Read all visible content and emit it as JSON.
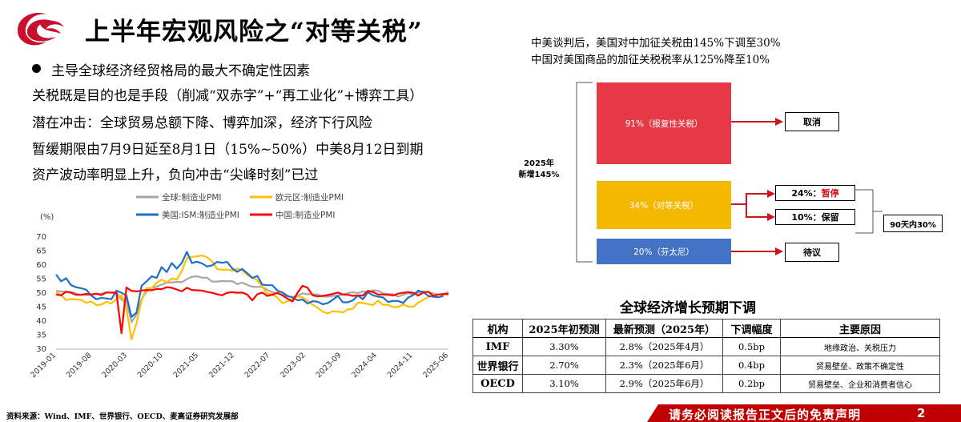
{
  "header": {
    "title": "上半年宏观风险之“对等关税”"
  },
  "left": {
    "bullet": "主导全球经济经贸格局的最大不确定性因素",
    "lines": [
      "关税既是目的也是手段（削减“双赤字”+“再工业化”+博弈工具）",
      "潜在冲击：全球贸易总额下降、博弈加深，经济下行风险",
      "暂缓期限由7月9日延至8月1日（15%~50%）中美8月12日到期",
      "资产波动率明显上升，负向冲击“尖峰时刻”已过"
    ]
  },
  "chart_data": {
    "type": "line",
    "ylabel": "(%)",
    "ylim": [
      30,
      70
    ],
    "yticks": [
      "70",
      "65",
      "60",
      "55",
      "50",
      "45",
      "40",
      "35",
      "30"
    ],
    "xticks": [
      "2019-01",
      "2019-08",
      "2020-03",
      "2020-10",
      "2021-05",
      "2021-12",
      "2022-07",
      "2023-02",
      "2023-09",
      "2024-04",
      "2024-11",
      "2025-06"
    ],
    "legend": [
      "全球:制造业PMI",
      "欧元区:制造业PMI",
      "美国:ISM:制造业PMI",
      "中国:制造业PMI"
    ],
    "colors": [
      "#a6a6a6",
      "#ffc000",
      "#1f6fc6",
      "#ff0000"
    ],
    "series": [
      {
        "name": "全球:制造业PMI",
        "values": [
          50.8,
          50.6,
          50.5,
          50.4,
          49.8,
          49.4,
          49.3,
          49.5,
          49.7,
          49.8,
          50.3,
          50.1,
          50.4,
          47.6,
          47.3,
          39.6,
          42.4,
          47.8,
          50.6,
          51.8,
          52.3,
          53.0,
          53.7,
          53.8,
          54.0,
          53.9,
          55.0,
          55.8,
          56.0,
          55.5,
          55.5,
          54.1,
          54.1,
          54.3,
          54.2,
          54.3,
          53.2,
          53.7,
          52.9,
          52.3,
          52.2,
          52.2,
          51.1,
          50.3,
          49.8,
          49.4,
          48.8,
          48.6,
          49.1,
          49.9,
          49.6,
          49.6,
          49.5,
          48.8,
          48.7,
          49.0,
          49.1,
          49.5,
          50.0,
          50.3,
          50.0,
          50.6,
          50.3,
          51.0,
          50.8,
          49.9,
          49.7,
          49.6,
          48.7,
          49.4,
          50.0,
          49.6,
          50.1,
          50.6,
          50.3,
          49.8,
          49.5,
          49.6,
          50.4
        ]
      },
      {
        "name": "欧元区:制造业PMI",
        "values": [
          50.5,
          49.3,
          47.5,
          47.9,
          47.7,
          47.6,
          46.5,
          47.0,
          45.7,
          45.9,
          46.9,
          46.3,
          47.9,
          49.2,
          44.5,
          33.4,
          39.4,
          47.4,
          51.8,
          51.7,
          53.7,
          54.8,
          53.8,
          55.2,
          54.8,
          57.9,
          62.5,
          62.9,
          63.1,
          63.4,
          62.8,
          61.4,
          58.6,
          58.3,
          58.4,
          58.0,
          58.7,
          58.2,
          56.5,
          55.5,
          54.6,
          52.1,
          49.8,
          49.6,
          48.4,
          46.4,
          47.1,
          47.8,
          48.8,
          48.5,
          47.3,
          45.8,
          44.8,
          43.4,
          42.7,
          43.5,
          43.4,
          43.1,
          44.2,
          44.4,
          46.6,
          46.5,
          46.1,
          45.7,
          47.3,
          45.8,
          45.8,
          45.0,
          45.0,
          46.0,
          45.2,
          45.1,
          46.6,
          47.6,
          48.6,
          49.0,
          49.4,
          49.5,
          49.5
        ]
      },
      {
        "name": "美国:ISM:制造业PMI",
        "values": [
          56.6,
          54.2,
          55.3,
          52.8,
          52.1,
          51.7,
          51.2,
          49.1,
          47.8,
          48.3,
          48.1,
          47.8,
          50.9,
          50.1,
          49.1,
          41.5,
          43.1,
          52.6,
          54.2,
          56.0,
          55.4,
          59.3,
          57.5,
          60.7,
          58.7,
          60.8,
          64.7,
          60.7,
          61.2,
          60.6,
          59.5,
          59.9,
          61.1,
          60.8,
          61.1,
          58.8,
          57.6,
          58.6,
          57.1,
          55.4,
          56.1,
          53.0,
          52.8,
          52.8,
          50.9,
          50.2,
          49.0,
          48.4,
          47.4,
          47.7,
          46.3,
          47.1,
          46.9,
          46.0,
          46.4,
          47.6,
          49.0,
          46.7,
          46.7,
          47.4,
          49.1,
          47.8,
          50.3,
          49.2,
          48.7,
          48.5,
          46.8,
          47.2,
          47.2,
          46.5,
          48.4,
          49.3,
          50.9,
          50.3,
          49.0,
          48.7,
          48.5,
          49.0
        ]
      },
      {
        "name": "中国:制造业PMI",
        "values": [
          49.5,
          49.2,
          50.5,
          50.1,
          49.4,
          49.4,
          49.7,
          49.5,
          49.8,
          49.3,
          50.2,
          50.2,
          50.0,
          35.7,
          52.0,
          50.8,
          50.6,
          50.9,
          51.1,
          51.0,
          51.5,
          51.4,
          52.1,
          51.9,
          51.3,
          50.6,
          51.9,
          51.1,
          51.0,
          50.9,
          50.4,
          50.1,
          49.6,
          49.2,
          50.1,
          50.3,
          50.1,
          50.2,
          49.5,
          47.4,
          49.6,
          50.2,
          49.0,
          49.4,
          50.1,
          49.2,
          48.0,
          47.0,
          50.1,
          52.6,
          51.9,
          49.2,
          48.8,
          49.0,
          49.3,
          49.7,
          50.2,
          49.5,
          49.4,
          49.0,
          49.2,
          49.1,
          50.8,
          50.4,
          49.5,
          49.5,
          49.4,
          49.1,
          49.8,
          50.1,
          50.3,
          50.1,
          49.1,
          50.2,
          50.5,
          49.0,
          49.5,
          49.7,
          49.7
        ]
      }
    ]
  },
  "notes": {
    "line1": "中美谈判后，美国对中加征关税由145%下调至30%",
    "line2": "中国对美国商品的加征关税税率从125%降至10%"
  },
  "diagram": {
    "total_label_1": "2025年",
    "total_label_2": "新增145%",
    "red_box": "91%（报复性关税）",
    "yellow_box": "34%（对等关税）",
    "blue_box": "20%（芬太尼）",
    "cancel": "取消",
    "suspend_pct": "24%：",
    "suspend": "暂停",
    "keep": "10%：保留",
    "pending": "待议",
    "window": "90天内30%",
    "colors": {
      "red": "#e63946",
      "yellow": "#f5b800",
      "blue": "#4472c4",
      "arrow": "#d0141b"
    }
  },
  "forecast": {
    "title": "全球经济增长预期下调",
    "headers": [
      "机构",
      "2025年初预测",
      "最新预测（2025年）",
      "下调幅度",
      "主要原因"
    ],
    "rows": [
      [
        "IMF",
        "3.30%",
        "2.8%（2025年4月）",
        "0.5bp",
        "地缘政治、关税压力"
      ],
      [
        "世界银行",
        "2.70%",
        "2.3%（2025年6月）",
        "0.4bp",
        "贸易壁垒、政策不确定性"
      ],
      [
        "OECD",
        "3.10%",
        "2.9%（2025年6月）",
        "0.2bp",
        "贸易壁垒、企业和消费者信心"
      ]
    ]
  },
  "footer": {
    "source": "资料来源：Wind、IMF、世界银行、OECD、麦高证券研究发展部",
    "disclaimer": "请务必阅读报告正文后的免责声明",
    "page": "2"
  }
}
